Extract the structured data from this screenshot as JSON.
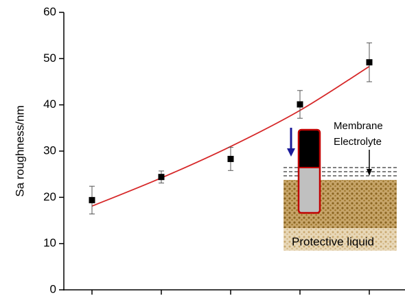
{
  "chart_data": {
    "type": "scatter",
    "y_label": "Sa roughness/nm",
    "categories": [
      null,
      null,
      null,
      null,
      null
    ],
    "values": [
      19.4,
      24.4,
      28.3,
      40.1,
      49.2
    ],
    "errors": [
      3,
      1.3,
      2.5,
      3,
      4.2
    ],
    "color": "#000000",
    "trend": {
      "color": "#d62728",
      "values": [
        18.1,
        24.2,
        31,
        38.8,
        48.3
      ]
    },
    "ylim": [
      0,
      60
    ],
    "yticks": [
      0,
      10,
      20,
      30,
      40,
      50,
      60
    ],
    "annotations": [
      "Membrane",
      "Electrolyte",
      "Protective liquid"
    ]
  }
}
